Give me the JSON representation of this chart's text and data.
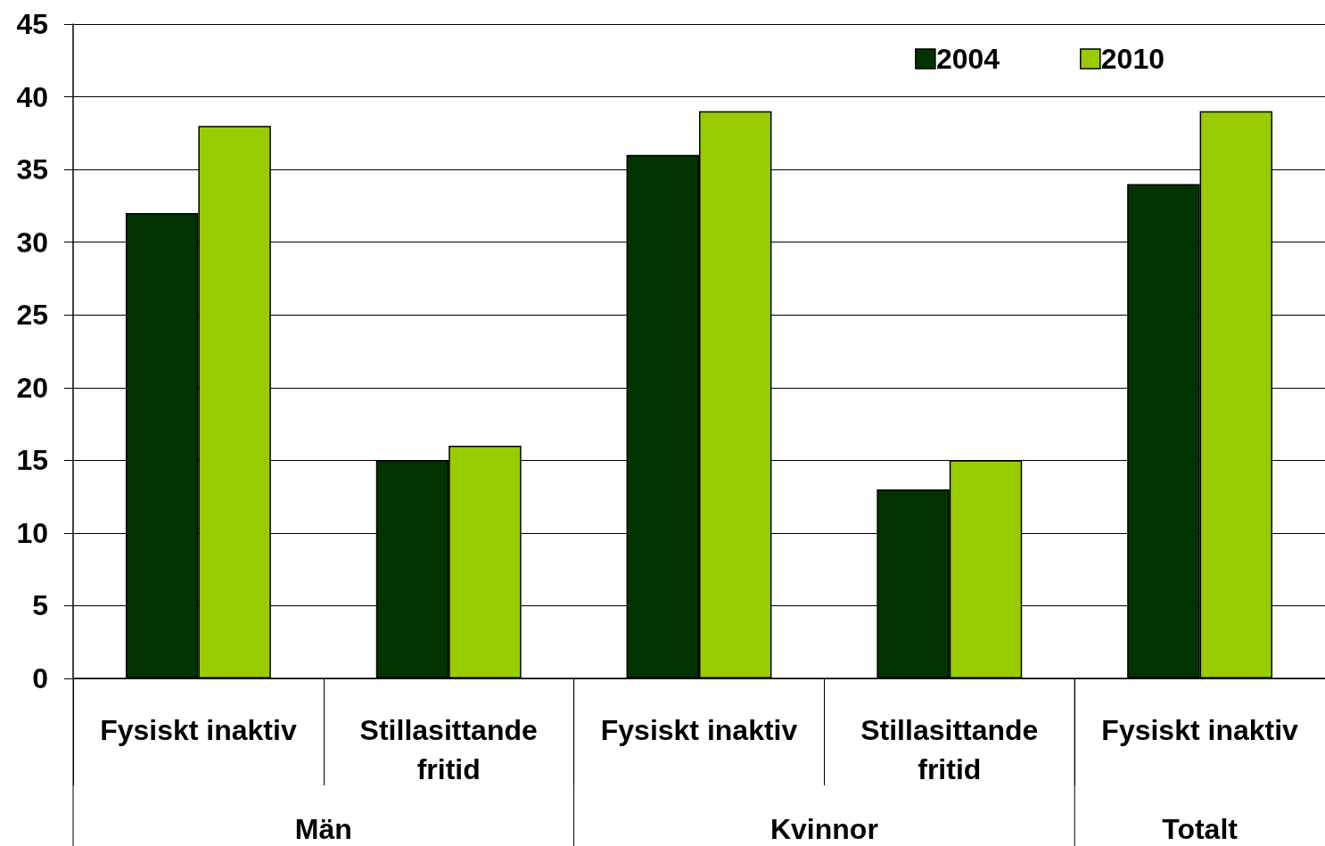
{
  "chart_data": {
    "type": "bar",
    "categories": [
      "Fysiskt inaktiv",
      "Stillasittande\nfritid",
      "Fysiskt inaktiv",
      "Stillasittande\nfritid",
      "Fysiskt inaktiv"
    ],
    "series": [
      {
        "name": "2004",
        "color": "#003300",
        "values": [
          32,
          15,
          36,
          13,
          34
        ]
      },
      {
        "name": "2010",
        "color": "#99cc00",
        "values": [
          38,
          16,
          39,
          15,
          39
        ]
      }
    ],
    "annotations": [
      "Män",
      "Kvinnor",
      "Totalt"
    ],
    "ylim": [
      0,
      45
    ],
    "yticks": [
      0,
      5,
      10,
      15,
      20,
      25,
      30,
      35,
      40,
      45
    ],
    "grid": "y",
    "legend": "top right"
  }
}
